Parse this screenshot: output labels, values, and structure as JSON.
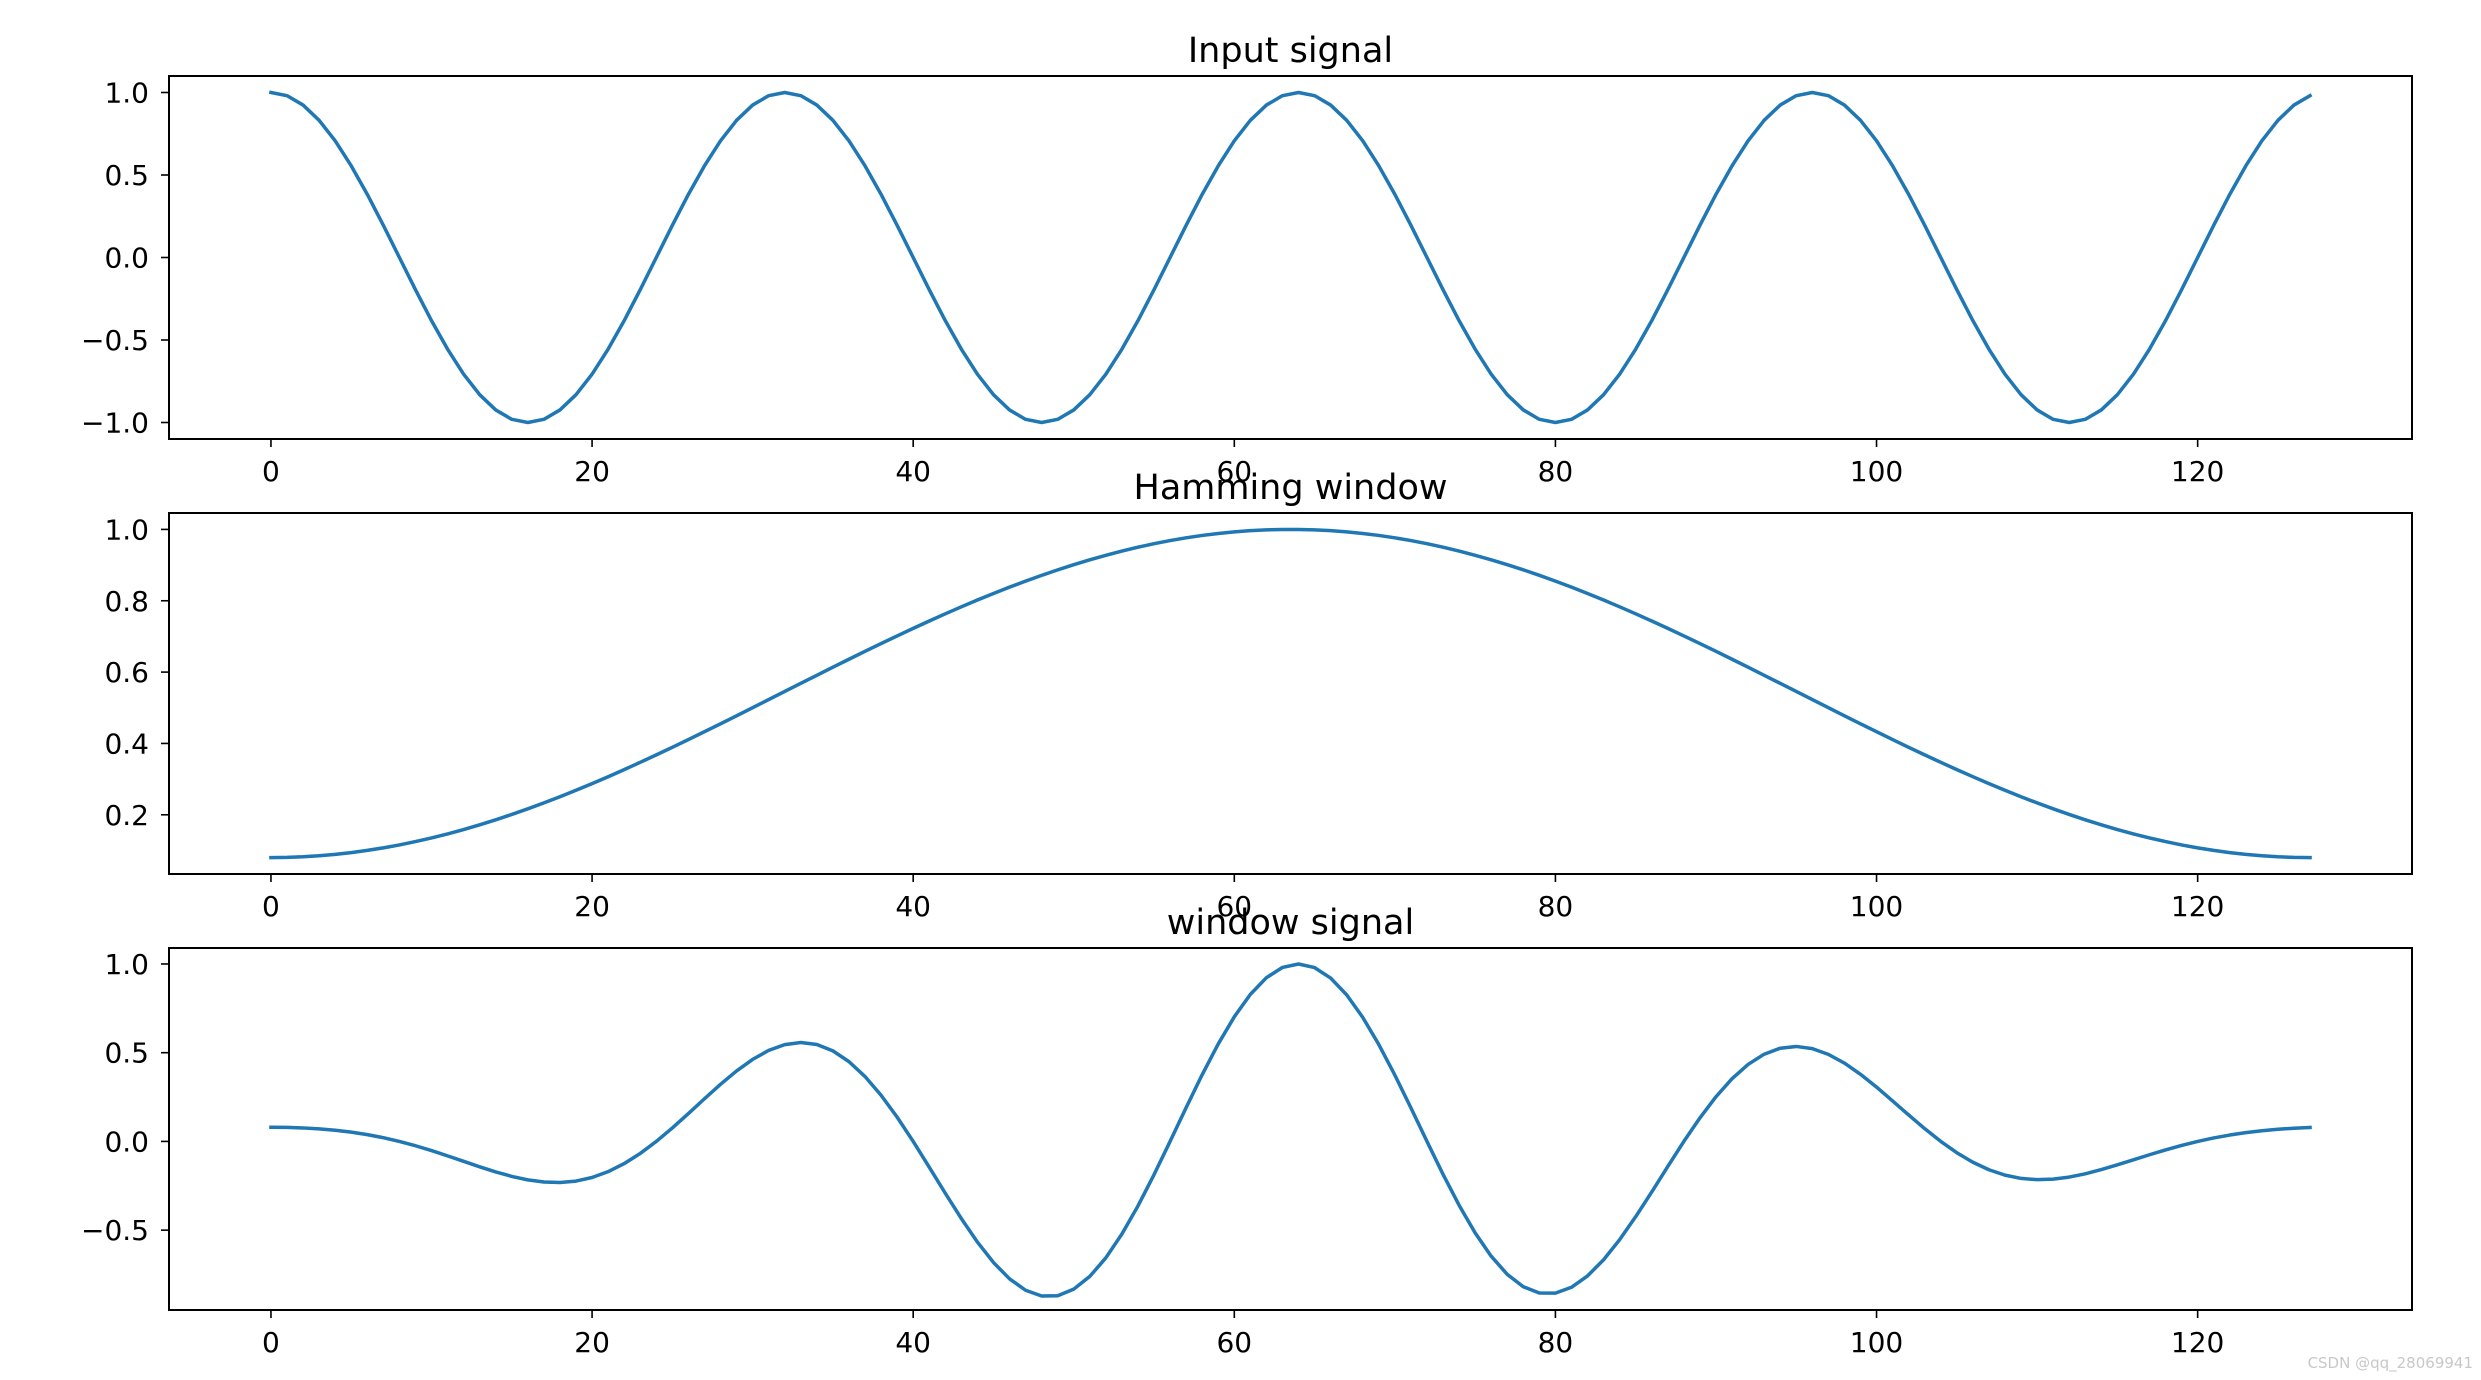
{
  "chart_data": [
    {
      "type": "line",
      "title": "Input signal",
      "xlabel": "",
      "ylabel": "",
      "n_points": 128,
      "formula": "cos(2*pi*n/32)",
      "xlim": [
        -6.35,
        133.35
      ],
      "ylim": [
        -1.1,
        1.1
      ],
      "xticks": [
        0,
        20,
        40,
        60,
        80,
        100,
        120
      ],
      "yticks": [
        1.0,
        0.5,
        0.0,
        -0.5,
        -1.0
      ],
      "ytick_labels": [
        "1.0",
        "0.5",
        "0.0",
        "−0.5",
        "−1.0"
      ],
      "series": [
        {
          "color": "#1f77b4"
        }
      ],
      "grid": false
    },
    {
      "type": "line",
      "title": "Hamming window",
      "xlabel": "",
      "ylabel": "",
      "n_points": 128,
      "formula": "0.54 - 0.46*cos(2*pi*n/127)",
      "xlim": [
        -6.35,
        133.35
      ],
      "ylim": [
        0.034,
        1.046
      ],
      "xticks": [
        0,
        20,
        40,
        60,
        80,
        100,
        120
      ],
      "yticks": [
        1.0,
        0.8,
        0.6,
        0.4,
        0.2
      ],
      "ytick_labels": [
        "1.0",
        "0.8",
        "0.6",
        "0.4",
        "0.2"
      ],
      "series": [
        {
          "color": "#1f77b4"
        }
      ],
      "grid": false
    },
    {
      "type": "line",
      "title": "window signal",
      "xlabel": "",
      "ylabel": "",
      "n_points": 128,
      "formula": "cos(2*pi*n/32) * (0.54 - 0.46*cos(2*pi*n/127))",
      "xlim": [
        -6.35,
        133.35
      ],
      "ylim": [
        -0.95,
        1.09
      ],
      "xticks": [
        0,
        20,
        40,
        60,
        80,
        100,
        120
      ],
      "yticks": [
        1.0,
        0.5,
        0.0,
        -0.5
      ],
      "ytick_labels": [
        "1.0",
        "0.5",
        "0.0",
        "−0.5"
      ],
      "series": [
        {
          "color": "#1f77b4"
        }
      ],
      "grid": false
    }
  ],
  "watermark": "CSDN @qq_28069941"
}
